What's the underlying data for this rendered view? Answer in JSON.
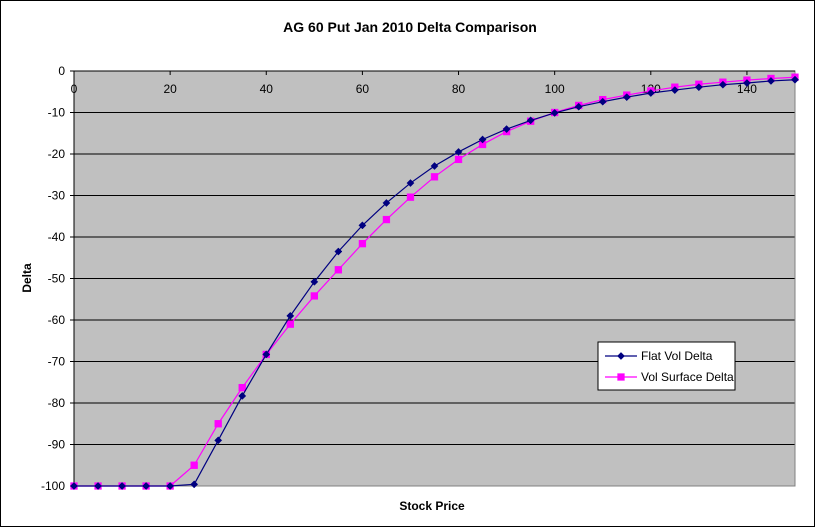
{
  "chart_data": {
    "type": "line",
    "title": "AG 60 Put Jan 2010 Delta Comparison",
    "xlabel": "Stock Price",
    "ylabel": "Delta",
    "xlim": [
      0,
      150
    ],
    "ylim": [
      -100,
      0
    ],
    "xticks": [
      0,
      20,
      40,
      60,
      80,
      100,
      120,
      140
    ],
    "yticks": [
      0,
      -10,
      -20,
      -30,
      -40,
      -50,
      -60,
      -70,
      -80,
      -90,
      -100
    ],
    "grid": "horizontal",
    "legend_position": "bottom-right",
    "plot_background": "#C0C0C0",
    "x": [
      0,
      5,
      10,
      15,
      20,
      25,
      30,
      35,
      40,
      45,
      50,
      55,
      60,
      65,
      70,
      75,
      80,
      85,
      90,
      95,
      100,
      105,
      110,
      115,
      120,
      125,
      130,
      135,
      140,
      145,
      150
    ],
    "series": [
      {
        "name": "Flat Vol Delta",
        "color": "#000080",
        "marker": "diamond",
        "values": [
          -100,
          -100,
          -100,
          -100,
          -100,
          -99.6,
          -89,
          -78.3,
          -68.3,
          -59,
          -50.8,
          -43.5,
          -37.2,
          -31.8,
          -27,
          -22.9,
          -19.5,
          -16.5,
          -14,
          -11.9,
          -10.1,
          -8.6,
          -7.4,
          -6.3,
          -5.3,
          -4.6,
          -3.9,
          -3.3,
          -2.9,
          -2.4,
          -2.1
        ]
      },
      {
        "name": "Vol Surface Delta",
        "color": "#FF00FF",
        "marker": "square",
        "values": [
          -100,
          -100,
          -100,
          -100,
          -100,
          -95,
          -85,
          -76.3,
          -68.3,
          -61,
          -54.2,
          -47.9,
          -41.6,
          -35.8,
          -30.4,
          -25.5,
          -21.3,
          -17.7,
          -14.6,
          -12.1,
          -10,
          -8.3,
          -6.9,
          -5.8,
          -4.8,
          -3.9,
          -3.2,
          -2.7,
          -2.2,
          -1.8,
          -1.5
        ]
      }
    ]
  }
}
